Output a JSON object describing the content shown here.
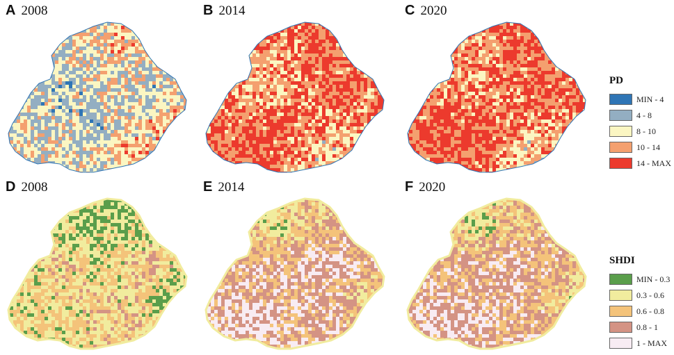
{
  "rows": [
    {
      "id": "pd",
      "panels": [
        {
          "letter": "A",
          "year": "2008",
          "profile": [
            3,
            4,
            2,
            3,
            2,
            2,
            4,
            3,
            4
          ]
        },
        {
          "letter": "B",
          "year": "2014",
          "profile": [
            4,
            5,
            3,
            4,
            5,
            5,
            4,
            5,
            3
          ]
        },
        {
          "letter": "C",
          "year": "2020",
          "profile": [
            4,
            5,
            4,
            4,
            5,
            5,
            4,
            5,
            3
          ]
        }
      ],
      "legend": {
        "title": "PD",
        "items": [
          {
            "label": "MIN - 4",
            "color": "#2f75b5"
          },
          {
            "label": "4 - 8",
            "color": "#93aec2"
          },
          {
            "label": "8 - 10",
            "color": "#fbf6c2"
          },
          {
            "label": "10 - 14",
            "color": "#f4a06f"
          },
          {
            "label": "14 - MAX",
            "color": "#ec3a2d"
          }
        ]
      }
    },
    {
      "id": "shdi",
      "panels": [
        {
          "letter": "D",
          "year": "2008",
          "profile": [
            1,
            1,
            3,
            2,
            4,
            3,
            1,
            2,
            3
          ]
        },
        {
          "letter": "E",
          "year": "2014",
          "profile": [
            1,
            3,
            4,
            5,
            5,
            4,
            2,
            5,
            4
          ]
        },
        {
          "letter": "F",
          "year": "2020",
          "profile": [
            1,
            3,
            4,
            5,
            4,
            4,
            2,
            5,
            4
          ]
        }
      ],
      "legend": {
        "title": "SHDI",
        "items": [
          {
            "label": "MIN - 0.3",
            "color": "#5a9e4b"
          },
          {
            "label": "0.3 - 0.6",
            "color": "#f1ec9e"
          },
          {
            "label": "0.6 - 0.8",
            "color": "#f4c37a"
          },
          {
            "label": "0.8 - 1",
            "color": "#d49384"
          },
          {
            "label": "1 - MAX",
            "color": "#f8ecf3"
          }
        ]
      }
    }
  ]
}
